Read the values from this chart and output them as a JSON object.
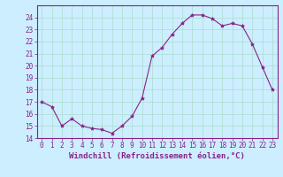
{
  "x": [
    0,
    1,
    2,
    3,
    4,
    5,
    6,
    7,
    8,
    9,
    10,
    11,
    12,
    13,
    14,
    15,
    16,
    17,
    18,
    19,
    20,
    21,
    22,
    23
  ],
  "y": [
    17.0,
    16.6,
    15.0,
    15.6,
    15.0,
    14.8,
    14.7,
    14.4,
    15.0,
    15.8,
    17.3,
    20.8,
    21.5,
    22.6,
    23.5,
    24.2,
    24.2,
    23.9,
    23.3,
    23.5,
    23.3,
    21.8,
    19.9,
    18.0
  ],
  "line_color": "#882288",
  "marker": "*",
  "marker_size": 3,
  "background_color": "#cceeff",
  "grid_color": "#aaddcc",
  "xlabel": "Windchill (Refroidissement éolien,°C)",
  "ylim": [
    14,
    25
  ],
  "xlim": [
    -0.5,
    23.5
  ],
  "yticks": [
    14,
    15,
    16,
    17,
    18,
    19,
    20,
    21,
    22,
    23,
    24
  ],
  "xticks": [
    0,
    1,
    2,
    3,
    4,
    5,
    6,
    7,
    8,
    9,
    10,
    11,
    12,
    13,
    14,
    15,
    16,
    17,
    18,
    19,
    20,
    21,
    22,
    23
  ],
  "tick_color": "#882288",
  "label_color": "#882288",
  "tick_fontsize": 5.5,
  "xlabel_fontsize": 6.5,
  "spine_color": "#882288"
}
